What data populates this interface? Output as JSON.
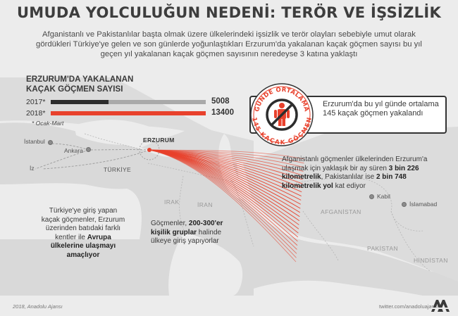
{
  "title": "UMUDA YOLCULUĞUN NEDENİ: TERÖR VE İŞSİZLİK",
  "subtitle": "Afganistanlı ve Pakistanlılar başta olmak üzere ülkelerindeki işsizlik ve terör olayları sebebiyle umut olarak gördükleri Türkiye'ye gelen ve son günlerde yoğunlaştıkları Erzurum'da yakalanan kaçak göçmen sayısı bu yıl geçen yıl yakalanan kaçak göçmen sayısının neredeyse 3 katına yaklaştı",
  "stats": {
    "title_line1": "ERZURUM'DA YAKALANAN",
    "title_line2": "KAÇAK GÖÇMEN SAYISI",
    "max_value": 13400,
    "rows": [
      {
        "year": "2017*",
        "value": 5008,
        "value_label": "5008",
        "color": "#2d2d2d"
      },
      {
        "year": "2018*",
        "value": 13400,
        "value_label": "13400",
        "color": "#e8412c"
      }
    ],
    "footnote": "* Ocak-Mart"
  },
  "badge": {
    "top_text": "GÜNDE ORTALAMA",
    "bottom_text": "145 KAÇAK GÖÇMEN",
    "ring_color": "#e8412c",
    "icon": "no-migrant-icon"
  },
  "callout": {
    "text": "Erzurum'da bu yıl günde ortalama 145 kaçak göçmen yakalandı"
  },
  "map": {
    "erzurum": "ERZURUM",
    "istanbul": "İstanbul",
    "ankara": "Ankara",
    "izmir_fragment": "İz",
    "turkey": "TÜRKİYE",
    "iraq": "IRAK",
    "iran": "İRAN",
    "afghanistan": "AFGANİSTAN",
    "pakistan": "PAKİSTAN",
    "india": "HİNDİSTAN",
    "kabul": "Kabil",
    "islamabad": "İslamabad",
    "route_color": "#e8412c"
  },
  "info_right": {
    "p1": "Afganistanlı göçmenler ülkelerinden Erzurum'a ulaşmak için yaklaşık bir ay süren ",
    "b1": "3 bin 226 kilometrelik",
    "p2": ", Pakistanlılar ise ",
    "b2": "2 bin 748 kilometrelik yol",
    "p3": " kat ediyor"
  },
  "info_left": {
    "p1": "Türkiye'ye giriş yapan kaçak göçmenler, Erzurum üzerinden batıdaki farklı kentler ile ",
    "b1": "Avrupa ülkelerine ulaşmayı amaçlıyor"
  },
  "info_middle": {
    "p1": "Göçmenler, ",
    "b1": "200-300'er kişilik gruplar",
    "p2": " halinde ülkeye giriş yapıyorlar"
  },
  "footer": {
    "left": "2018, Anadolu Ajansı",
    "right": "twitter.com/anadoluajansi",
    "logo": "aa-logo-icon"
  }
}
